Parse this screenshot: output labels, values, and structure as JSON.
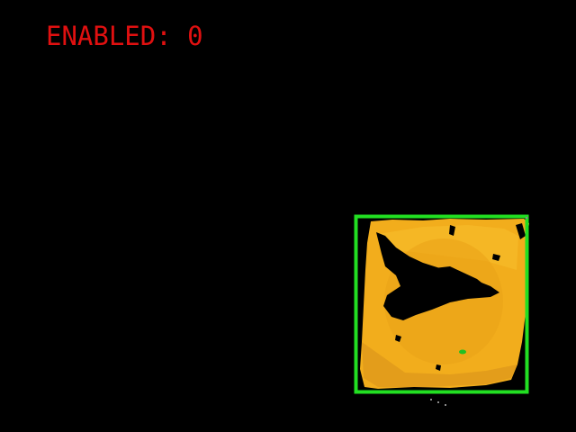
{
  "overlay": {
    "status_label": "ENABLED: 0",
    "status_color": "#e01010"
  },
  "detection": {
    "object_icon": "yellow-object-mask-icon",
    "object_color": "#f2ad1c",
    "box_color": "#22e022"
  }
}
